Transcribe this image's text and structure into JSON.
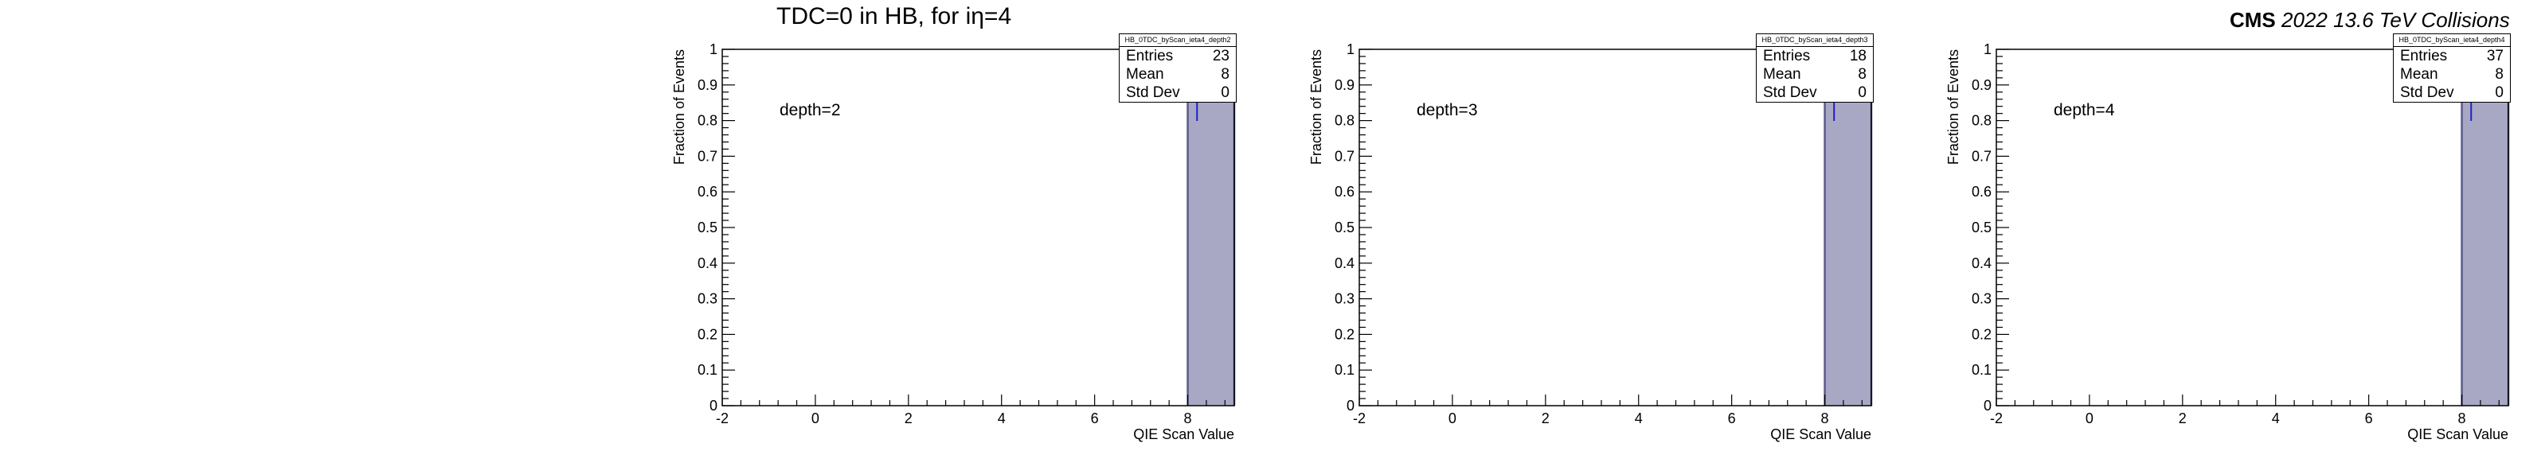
{
  "header": {
    "title_prefix": "TDC=0 in HB, for i",
    "title_eta": "η=4",
    "cms_label": "CMS",
    "cms_detail": "2022 13.6 TeV Collisions"
  },
  "stats_labels": {
    "entries": "Entries",
    "mean": "Mean",
    "std": "Std Dev"
  },
  "colors": {
    "fill": "#a8a8c4",
    "edge": "#5a5a8a",
    "errorbar": "#2020c0",
    "axis": "#000000"
  },
  "chart_data": [
    {
      "type": "bar",
      "hist_name": "HB_0TDC_byScan_ieta4_depth2",
      "annotation": "depth=2",
      "xlabel": "QIE Scan Value",
      "ylabel": "Fraction of Events",
      "xlim": [
        -2,
        9.0
      ],
      "ylim": [
        0,
        1
      ],
      "x_ticks": [
        "-2",
        "0",
        "2",
        "4",
        "6",
        "8"
      ],
      "y_ticks": [
        "0",
        "0.1",
        "0.2",
        "0.3",
        "0.4",
        "0.5",
        "0.6",
        "0.7",
        "0.8",
        "0.9",
        "1"
      ],
      "bins": [
        {
          "low": 8,
          "high": 9,
          "value": 1.0
        }
      ],
      "stats": {
        "entries": "23",
        "mean": "8",
        "std": "0"
      }
    },
    {
      "type": "bar",
      "hist_name": "HB_0TDC_byScan_ieta4_depth3",
      "annotation": "depth=3",
      "xlabel": "QIE Scan Value",
      "ylabel": "Fraction of Events",
      "xlim": [
        -2,
        9.0
      ],
      "ylim": [
        0,
        1
      ],
      "x_ticks": [
        "-2",
        "0",
        "2",
        "4",
        "6",
        "8"
      ],
      "y_ticks": [
        "0",
        "0.1",
        "0.2",
        "0.3",
        "0.4",
        "0.5",
        "0.6",
        "0.7",
        "0.8",
        "0.9",
        "1"
      ],
      "bins": [
        {
          "low": 8,
          "high": 9,
          "value": 1.0
        }
      ],
      "stats": {
        "entries": "18",
        "mean": "8",
        "std": "0"
      }
    },
    {
      "type": "bar",
      "hist_name": "HB_0TDC_byScan_ieta4_depth4",
      "annotation": "depth=4",
      "xlabel": "QIE Scan Value",
      "ylabel": "Fraction of Events",
      "xlim": [
        -2,
        9.0
      ],
      "ylim": [
        0,
        1
      ],
      "x_ticks": [
        "-2",
        "0",
        "2",
        "4",
        "6",
        "8"
      ],
      "y_ticks": [
        "0",
        "0.1",
        "0.2",
        "0.3",
        "0.4",
        "0.5",
        "0.6",
        "0.7",
        "0.8",
        "0.9",
        "1"
      ],
      "bins": [
        {
          "low": 8,
          "high": 9,
          "value": 1.0
        }
      ],
      "stats": {
        "entries": "37",
        "mean": "8",
        "std": "0"
      }
    }
  ]
}
